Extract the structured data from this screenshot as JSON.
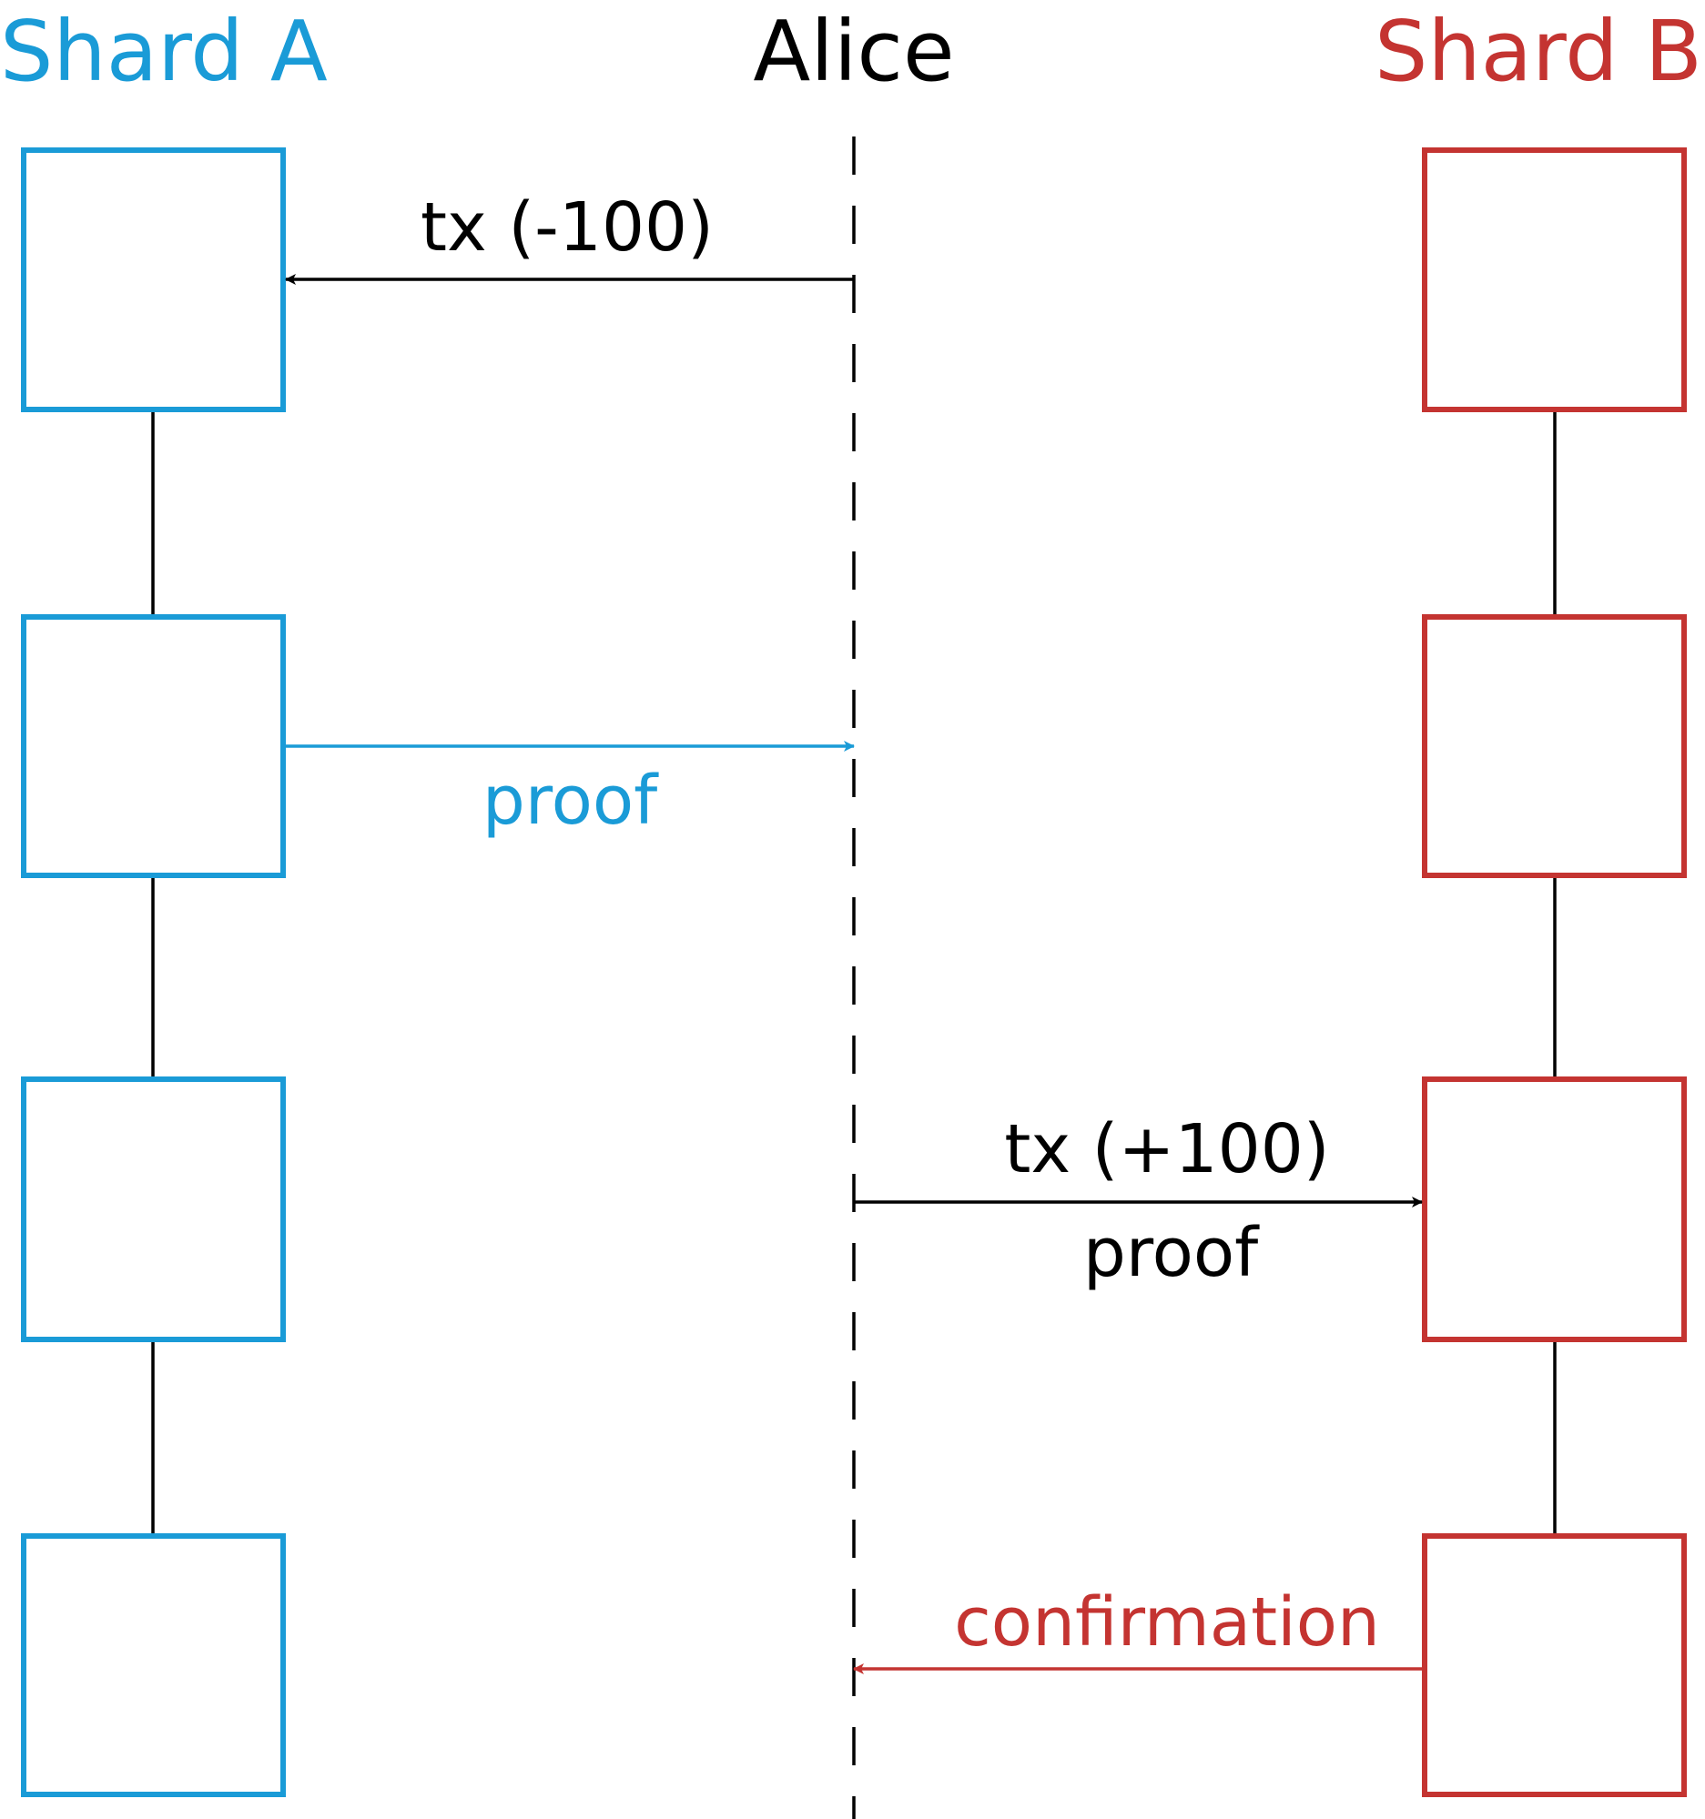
{
  "colors": {
    "shard_a": "#1a9bd7",
    "shard_b": "#c43431",
    "alice": "#000000",
    "chain_link": "#000000"
  },
  "participants": {
    "shard_a": "Shard A",
    "alice": "Alice",
    "shard_b": "Shard B"
  },
  "shard_a_blocks": 4,
  "shard_b_blocks": 4,
  "messages": {
    "tx_debit": "tx (-100)",
    "proof_to_alice": "proof",
    "tx_credit": "tx (+100)",
    "proof_to_shard_b": "proof",
    "confirmation": "confirmation"
  }
}
